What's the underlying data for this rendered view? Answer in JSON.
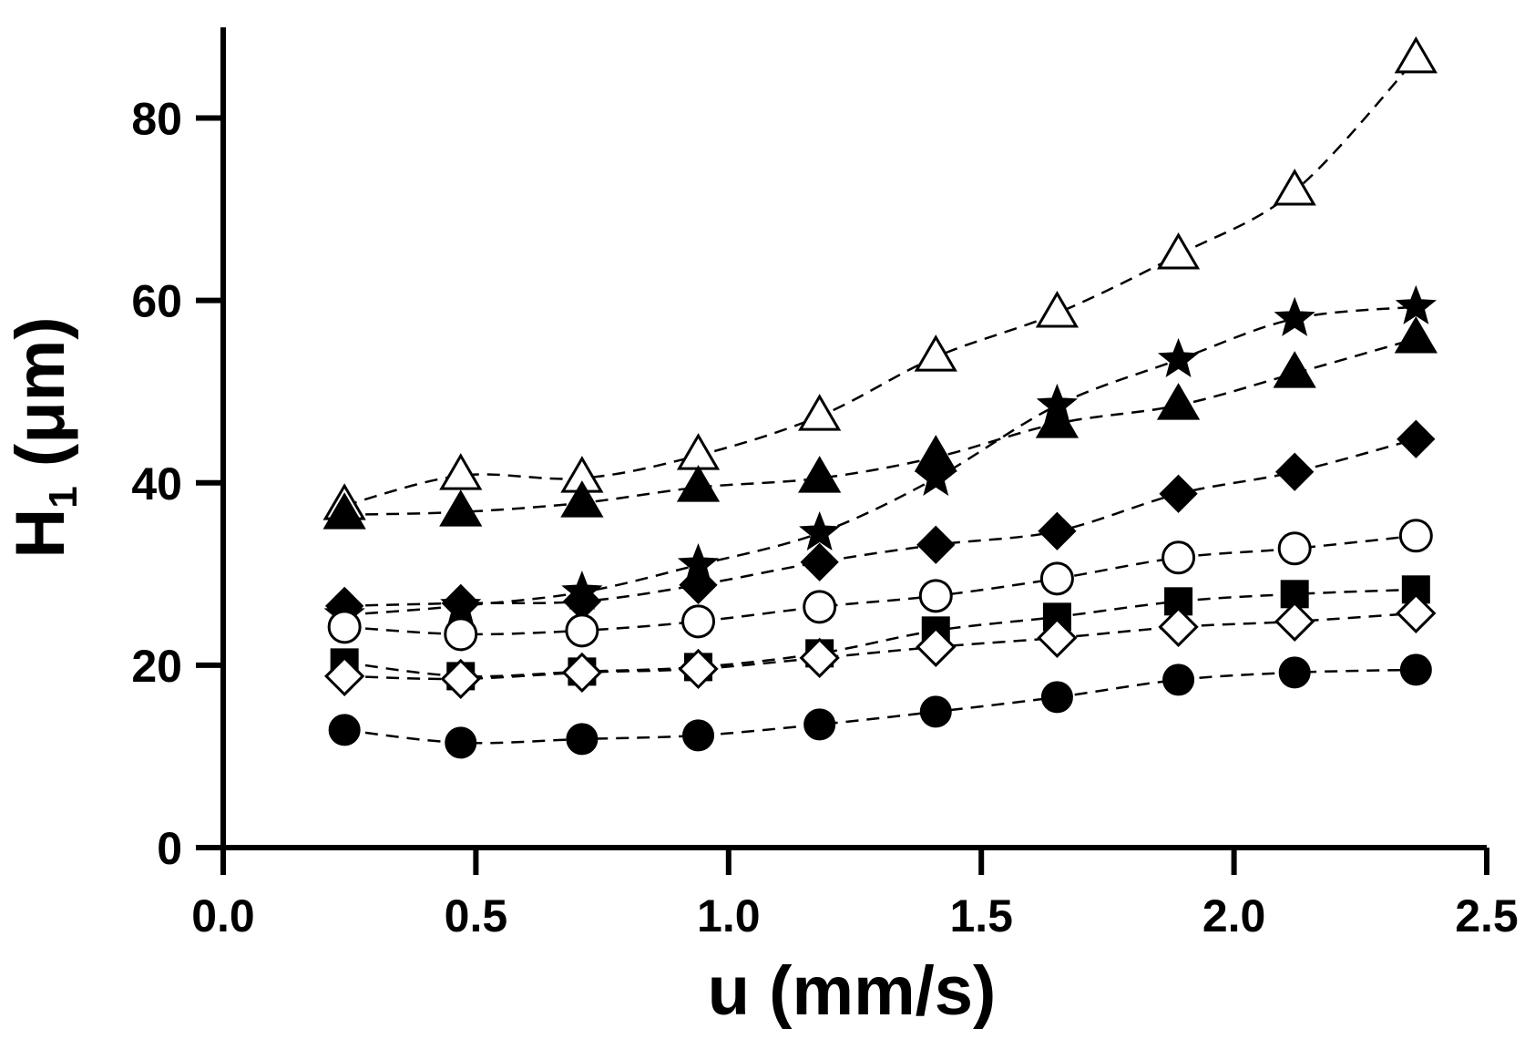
{
  "chart_data": {
    "type": "scatter",
    "title": "",
    "xlabel": "u (mm/s)",
    "ylabel_main": "H",
    "ylabel_sub": "1",
    "ylabel_unit": " (μm)",
    "xlim": [
      0.0,
      2.5
    ],
    "ylim": [
      0,
      90
    ],
    "xticks": [
      "0.0",
      "0.5",
      "1.0",
      "1.5",
      "2.0",
      "2.5"
    ],
    "yticks": [
      "0",
      "20",
      "40",
      "60",
      "80"
    ],
    "grid": false,
    "x": [
      0.24,
      0.47,
      0.71,
      0.94,
      1.18,
      1.41,
      1.65,
      1.89,
      2.12,
      2.36
    ],
    "series": [
      {
        "name": "open triangle",
        "marker": "triangle-open",
        "values": [
          37.5,
          40.8,
          40.5,
          43.0,
          47.3,
          53.8,
          58.6,
          65.0,
          72.0,
          86.5
        ]
      },
      {
        "name": "filled star",
        "marker": "star-filled",
        "values": [
          25.5,
          26.5,
          28.0,
          31.0,
          34.5,
          40.5,
          48.5,
          53.5,
          58.0,
          59.3
        ]
      },
      {
        "name": "filled triangle",
        "marker": "triangle-filled",
        "values": [
          36.5,
          36.8,
          37.8,
          39.5,
          40.5,
          42.8,
          46.5,
          48.5,
          52.0,
          55.8
        ]
      },
      {
        "name": "filled diamond",
        "marker": "diamond-filled",
        "values": [
          26.5,
          26.8,
          27.0,
          28.8,
          31.3,
          33.2,
          34.7,
          38.8,
          41.2,
          44.8
        ]
      },
      {
        "name": "open circle",
        "marker": "circle-open",
        "values": [
          24.2,
          23.4,
          23.8,
          24.8,
          26.4,
          27.6,
          29.5,
          31.8,
          32.8,
          34.2
        ]
      },
      {
        "name": "filled square",
        "marker": "square-filled",
        "values": [
          20.3,
          18.8,
          19.3,
          19.8,
          21.3,
          23.8,
          25.3,
          27.0,
          27.8,
          28.3
        ]
      },
      {
        "name": "open diamond",
        "marker": "diamond-open",
        "values": [
          18.8,
          18.5,
          19.2,
          19.6,
          20.8,
          22.0,
          23.0,
          24.2,
          24.8,
          25.7
        ]
      },
      {
        "name": "filled circle",
        "marker": "circle-filled",
        "values": [
          12.9,
          11.5,
          11.9,
          12.3,
          13.5,
          14.9,
          16.5,
          18.4,
          19.2,
          19.5
        ]
      }
    ]
  }
}
